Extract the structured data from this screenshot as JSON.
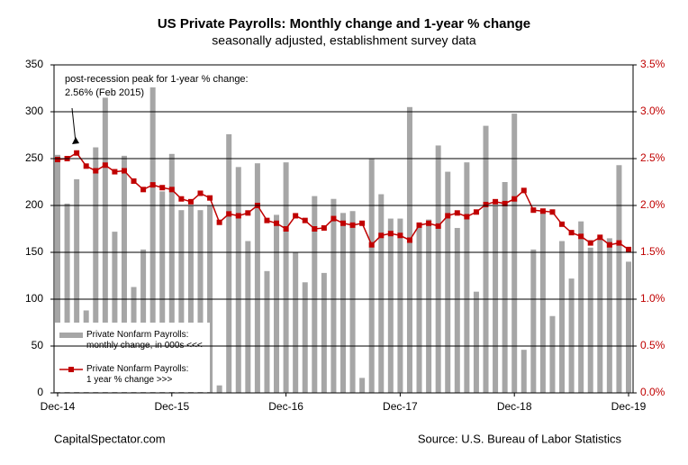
{
  "chart_data": {
    "type": "bar_line",
    "title": "US Private Payrolls: Monthly change and 1-year % change",
    "subtitle": "seasonally adjusted, establishment survey data",
    "annotations": [
      "post-recession peak for 1-year % change:",
      "2.56% (Feb 2015)"
    ],
    "credit": "CapitalSpectator.com",
    "source": "Source: U.S. Bureau of Labor Statistics",
    "categories": [
      "Dec-14",
      null,
      null,
      null,
      null,
      null,
      null,
      null,
      null,
      null,
      null,
      null,
      "Dec-15",
      null,
      null,
      null,
      null,
      null,
      null,
      null,
      null,
      null,
      null,
      null,
      "Dec-16",
      null,
      null,
      null,
      null,
      null,
      null,
      null,
      null,
      null,
      null,
      null,
      "Dec-17",
      null,
      null,
      null,
      null,
      null,
      null,
      null,
      null,
      null,
      null,
      null,
      "Dec-18",
      null,
      null,
      null,
      null,
      null,
      null,
      null,
      null,
      null,
      null,
      null,
      "Dec-19"
    ],
    "series": [
      {
        "name": "Private Nonfarm Payrolls:\nmonthly change, in 000s <<<",
        "color": "#a6a6a6",
        "axis": "y",
        "values": [
          254,
          202,
          228,
          88,
          262,
          315,
          172,
          253,
          113,
          153,
          326,
          215,
          255,
          195,
          200,
          195,
          200,
          8,
          276,
          241,
          162,
          245,
          130,
          190,
          246,
          150,
          118,
          210,
          128,
          207,
          192,
          194,
          16,
          250,
          212,
          186,
          186,
          305,
          180,
          185,
          264,
          236,
          176,
          246,
          108,
          285,
          200,
          225,
          298,
          46,
          153,
          195,
          82,
          162,
          122,
          183,
          155,
          163,
          165,
          243,
          140
        ]
      },
      {
        "name": "Private Nonfarm Payrolls:\n1 year % change >>>",
        "color": "#c00000",
        "axis": "y2",
        "values": [
          2.49,
          2.5,
          2.56,
          2.42,
          2.37,
          2.43,
          2.36,
          2.37,
          2.26,
          2.17,
          2.22,
          2.19,
          2.17,
          2.07,
          2.04,
          2.13,
          2.08,
          1.82,
          1.91,
          1.89,
          1.92,
          2.0,
          1.84,
          1.81,
          1.75,
          1.89,
          1.84,
          1.75,
          1.76,
          1.86,
          1.81,
          1.79,
          1.81,
          1.58,
          1.68,
          1.7,
          1.68,
          1.63,
          1.79,
          1.81,
          1.78,
          1.89,
          1.92,
          1.88,
          1.93,
          2.01,
          2.04,
          2.02,
          2.07,
          2.16,
          1.95,
          1.94,
          1.93,
          1.8,
          1.71,
          1.67,
          1.6,
          1.66,
          1.58,
          1.6,
          1.53
        ]
      }
    ],
    "ylim": [
      0,
      350
    ],
    "yticks": [
      0,
      50,
      100,
      150,
      200,
      250,
      300,
      350
    ],
    "y2lim": [
      0,
      3.5
    ],
    "y2ticks": [
      {
        "value": 0,
        "label": "0.0%"
      },
      {
        "value": 0.5,
        "label": "0.5%"
      },
      {
        "value": 1,
        "label": "1.0%"
      },
      {
        "value": 1.5,
        "label": "1.5%"
      },
      {
        "value": 2,
        "label": "2.0%"
      },
      {
        "value": 2.5,
        "label": "2.5%"
      },
      {
        "value": 3,
        "label": "3.0%"
      },
      {
        "value": 3.5,
        "label": "3.5%"
      }
    ],
    "grid": true
  }
}
